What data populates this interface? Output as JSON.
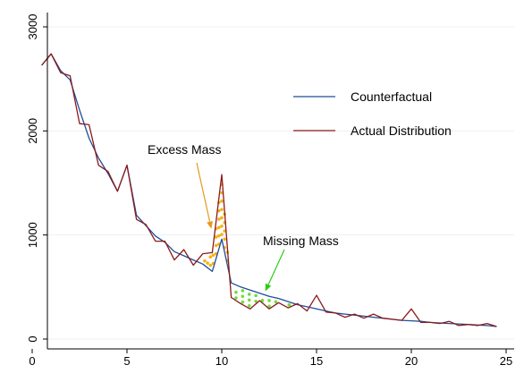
{
  "chart_data": {
    "type": "line",
    "title": "",
    "xlabel": "",
    "ylabel": "",
    "xlim": [
      0,
      25
    ],
    "ylim": [
      0,
      3000
    ],
    "x_ticks": [
      0,
      5,
      10,
      15,
      20,
      25
    ],
    "y_ticks": [
      0,
      1000,
      2000,
      3000
    ],
    "grid": "horizontal",
    "legend_position": "right",
    "series": [
      {
        "name": "Counterfactual",
        "color": "#1f4e9a",
        "x": [
          0.5,
          1.0,
          1.5,
          2.0,
          2.5,
          3.0,
          3.5,
          4.0,
          4.5,
          5.0,
          5.5,
          6.0,
          6.5,
          7.0,
          7.5,
          8.0,
          8.5,
          9.0,
          9.5,
          10.0,
          10.5,
          11.0,
          11.5,
          12.0,
          12.5,
          13.0,
          13.5,
          14.0,
          14.5,
          15.0,
          15.5,
          16.0,
          16.5,
          17.0,
          17.5,
          18.0,
          18.5,
          19.0,
          19.5,
          20.0,
          20.5,
          21.0,
          21.5,
          22.0,
          22.5,
          23.0,
          23.5,
          24.0,
          24.5
        ],
        "y": [
          2630,
          2740,
          2580,
          2490,
          2200,
          1930,
          1740,
          1590,
          1420,
          1670,
          1190,
          1090,
          990,
          930,
          840,
          800,
          760,
          720,
          650,
          960,
          540,
          500,
          470,
          440,
          410,
          390,
          360,
          330,
          310,
          290,
          270,
          250,
          240,
          230,
          220,
          210,
          200,
          190,
          180,
          175,
          170,
          160,
          155,
          150,
          145,
          140,
          135,
          130,
          120
        ]
      },
      {
        "name": "Actual Distribution",
        "color": "#8b1a1a",
        "x": [
          0.5,
          1.0,
          1.5,
          2.0,
          2.5,
          3.0,
          3.5,
          4.0,
          4.5,
          5.0,
          5.5,
          6.0,
          6.5,
          7.0,
          7.5,
          8.0,
          8.5,
          9.0,
          9.5,
          10.0,
          10.5,
          11.0,
          11.5,
          12.0,
          12.5,
          13.0,
          13.5,
          14.0,
          14.5,
          15.0,
          15.5,
          16.0,
          16.5,
          17.0,
          17.5,
          18.0,
          18.5,
          19.0,
          19.5,
          20.0,
          20.5,
          21.0,
          21.5,
          22.0,
          22.5,
          23.0,
          23.5,
          24.0,
          24.5
        ],
        "y": [
          2630,
          2740,
          2560,
          2530,
          2070,
          2060,
          1670,
          1610,
          1420,
          1670,
          1150,
          1100,
          940,
          940,
          760,
          860,
          710,
          820,
          830,
          1580,
          400,
          340,
          290,
          370,
          290,
          350,
          300,
          340,
          270,
          420,
          260,
          250,
          210,
          240,
          200,
          240,
          200,
          190,
          180,
          290,
          160,
          160,
          150,
          170,
          130,
          140,
          130,
          150,
          120
        ]
      }
    ],
    "annotations": [
      {
        "text": "Excess Mass",
        "arrow_to": [
          9.45,
          1060
        ],
        "arrow_color": "#e49a1a"
      },
      {
        "text": "Missing Mass",
        "arrow_to": [
          12.3,
          460
        ],
        "arrow_color": "#2ecc1a"
      }
    ],
    "excess_dots_color": "#f2b21b",
    "missing_dots_color": "#6edc3a"
  }
}
